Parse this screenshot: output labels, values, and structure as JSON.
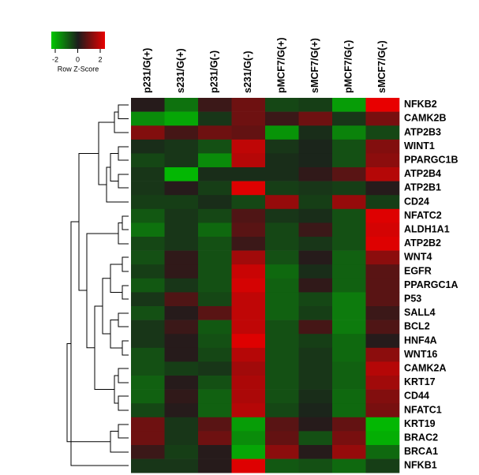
{
  "chart_data": {
    "type": "heatmap",
    "columns": [
      "p231/G(+)",
      "s231/G(+)",
      "p231/G(-)",
      "s231/G(-)",
      "pMCF7/G(+)",
      "sMCF7/G(+)",
      "pMCF7/G(-)",
      "sMCF7/G(-)"
    ],
    "rows": [
      "NFKB2",
      "CAMK2B",
      "ATP2B3",
      "WINT1",
      "PPARGC1B",
      "ATP2B4",
      "ATP2B1",
      "CD24",
      "NFATC2",
      "ALDH1A1",
      "ATP2B2",
      "WNT4",
      "EGFR",
      "PPARGC1A",
      "P53",
      "SALL4",
      "BCL2",
      "HNF4A",
      "WNT16",
      "CAMK2A",
      "KRT17",
      "CD44",
      "NFATC1",
      "KRT19",
      "BRAC2",
      "BRCA1",
      "NFKB1"
    ],
    "values": [
      [
        0.1,
        -1,
        0.3,
        0.8,
        -0.5,
        -0.4,
        -1.5,
        2
      ],
      [
        -1.3,
        -1.6,
        -0.3,
        0.8,
        0.3,
        0.8,
        -0.3,
        0.9
      ],
      [
        1,
        0.4,
        0.8,
        0.7,
        -1.4,
        -0.2,
        -1.2,
        -0.5
      ],
      [
        -0.2,
        -0.3,
        -0.6,
        1.6,
        -0.3,
        -0.1,
        -0.6,
        1
      ],
      [
        -0.5,
        -0.3,
        -1.3,
        1.5,
        -0.2,
        -0.1,
        -0.6,
        1.1
      ],
      [
        -0.3,
        -1.8,
        -0.2,
        -0.2,
        -0.2,
        0.2,
        0.6,
        1.5
      ],
      [
        -0.3,
        0.1,
        -0.4,
        1.9,
        -0.4,
        -0.3,
        -0.4,
        0.1
      ],
      [
        -0.4,
        -0.4,
        -0.2,
        -0.5,
        1.2,
        -0.4,
        1.2,
        -0.4
      ],
      [
        -0.7,
        -0.3,
        -0.5,
        0.5,
        -0.3,
        -0.2,
        -0.6,
        1.9
      ],
      [
        -1,
        -0.3,
        -0.9,
        0.6,
        -0.5,
        0.3,
        -0.6,
        1.8
      ],
      [
        -0.5,
        -0.3,
        -0.6,
        0.3,
        -0.5,
        -0.3,
        -0.6,
        1.9
      ],
      [
        -0.6,
        0.2,
        -0.6,
        1.3,
        -0.6,
        0.1,
        -0.8,
        1.1
      ],
      [
        -0.4,
        0.2,
        -0.6,
        1.7,
        -0.9,
        -0.2,
        -0.8,
        0.6
      ],
      [
        -0.7,
        -0.3,
        -0.6,
        1.8,
        -0.8,
        0.2,
        -0.8,
        0.6
      ],
      [
        -0.3,
        0.5,
        -0.5,
        1.6,
        -0.8,
        -0.5,
        -1.1,
        0.6
      ],
      [
        -0.6,
        0.1,
        0.6,
        1.6,
        -0.8,
        -0.4,
        -1.1,
        0.3
      ],
      [
        -0.3,
        0.3,
        -0.7,
        1.6,
        -0.6,
        0.4,
        -1.1,
        0.5
      ],
      [
        -0.3,
        0.1,
        -0.6,
        1.9,
        -0.6,
        -0.4,
        -0.9,
        0.1
      ],
      [
        -0.6,
        0.1,
        -0.5,
        1.5,
        -0.6,
        -0.3,
        -0.9,
        1.1
      ],
      [
        -0.6,
        -0.4,
        -0.3,
        1.3,
        -0.6,
        -0.3,
        -0.8,
        1.5
      ],
      [
        -0.8,
        0.1,
        -0.6,
        1.4,
        -0.6,
        -0.3,
        -0.8,
        1.3
      ],
      [
        -0.8,
        0.2,
        -0.8,
        1.4,
        -0.6,
        -0.2,
        -0.9,
        1
      ],
      [
        -0.5,
        0.1,
        -0.8,
        1.5,
        -0.5,
        -0.1,
        -0.9,
        0.9
      ],
      [
        0.8,
        -0.3,
        0.6,
        -1.5,
        0.6,
        0.1,
        0.7,
        -1.8
      ],
      [
        0.8,
        -0.3,
        0.8,
        -1.3,
        0.7,
        -0.6,
        0.9,
        -1.7
      ],
      [
        0.3,
        -0.4,
        0.1,
        -1.6,
        1.1,
        0.1,
        1.2,
        -0.9
      ],
      [
        -0.3,
        -0.3,
        0.1,
        1.9,
        -0.7,
        -0.6,
        -0.9,
        -0.4
      ]
    ],
    "colors": [
      "#00c800",
      "#1c1c1c",
      "#e80000"
    ],
    "vlim": [
      -2,
      2
    ],
    "colorbar_ticks": [
      -2,
      0,
      2
    ],
    "colorbar_label": "Row Z-Score"
  }
}
